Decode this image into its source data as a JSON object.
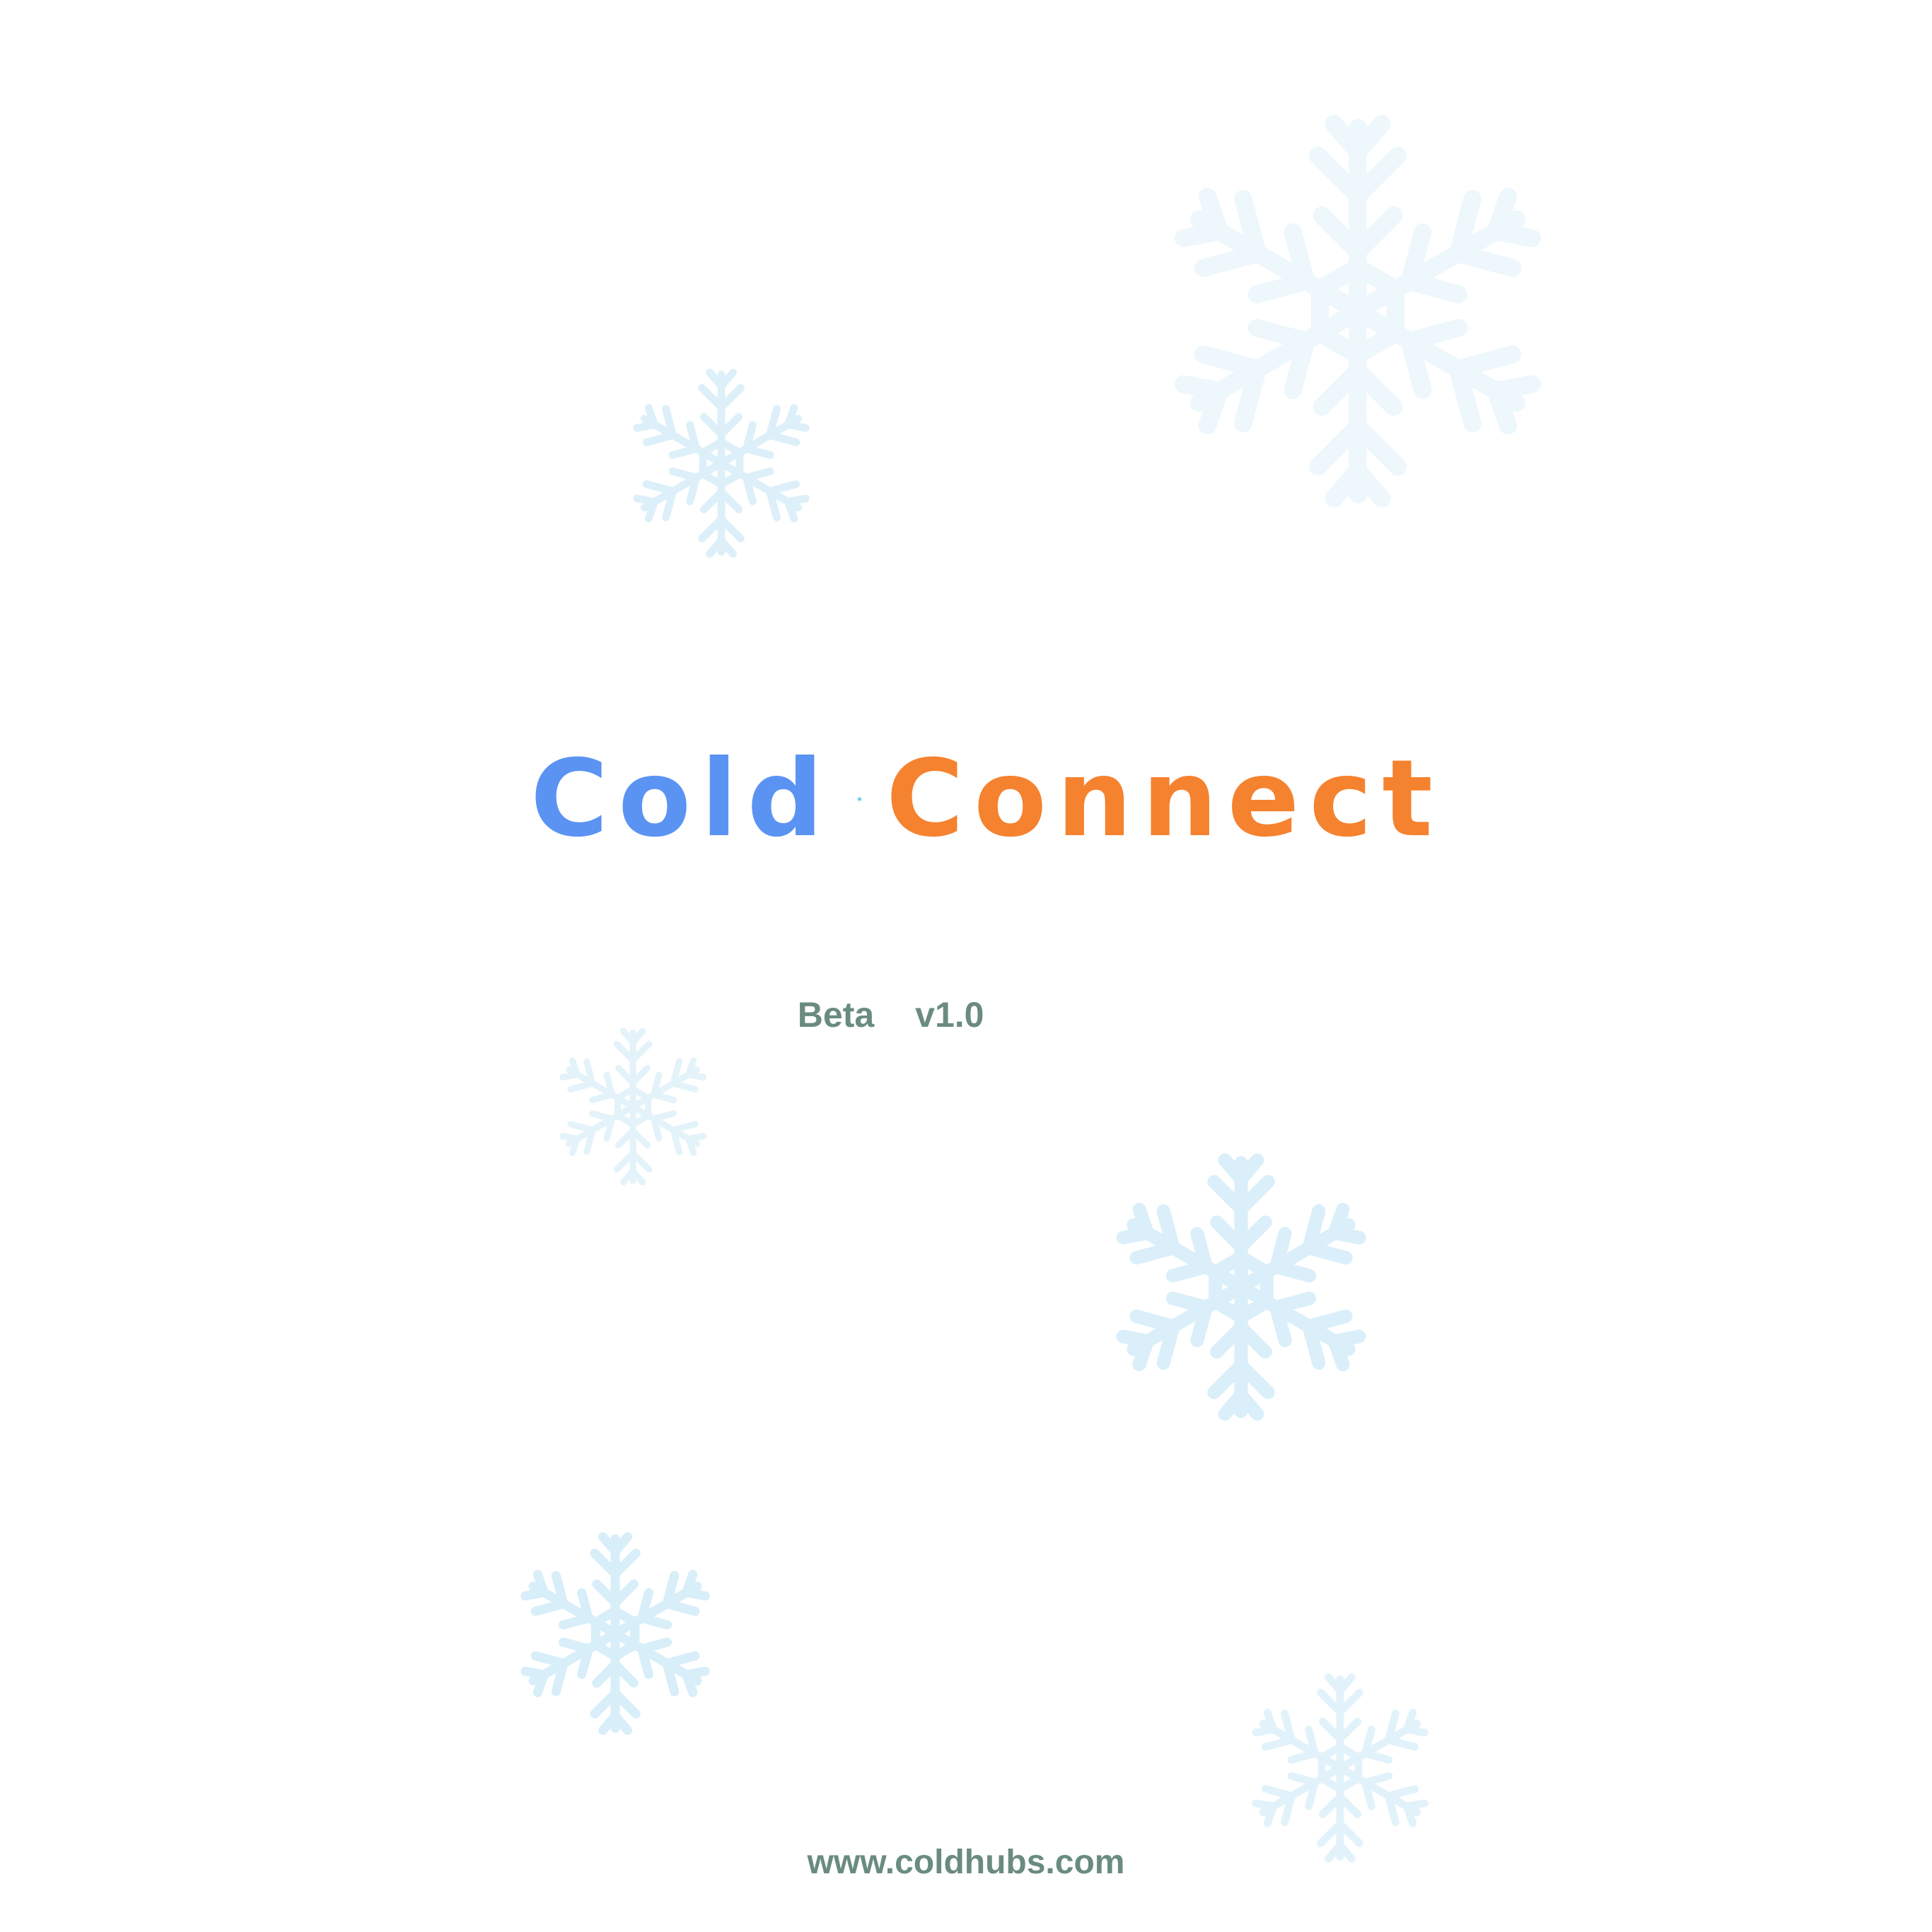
{
  "logo": {
    "word_left": "Cold",
    "word_right": "Connect",
    "icon": "snowflake-icon",
    "colors": {
      "cold": "#5a93f2",
      "connect": "#f5822f",
      "snowflake": "#1aa8e6"
    }
  },
  "release": {
    "stage": "Beta",
    "version": "v1.0"
  },
  "footer": {
    "url": "www.coldhubs.com"
  },
  "background": {
    "icon": "snowflake-icon",
    "color": "#dff1fa"
  },
  "text_color": "#6a8b80"
}
